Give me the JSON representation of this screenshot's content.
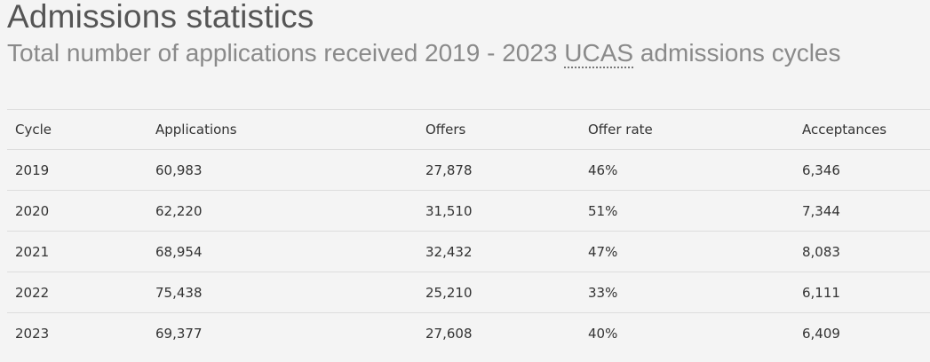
{
  "header": {
    "title": "Admissions statistics",
    "subtitle": {
      "before": "Total number of applications received 2019 - 2023",
      "abbr": "UCAS",
      "after": "admissions cycles"
    }
  },
  "table": {
    "columns": [
      "Cycle",
      "Applications",
      "Offers",
      "Offer rate",
      "Acceptances"
    ],
    "rows": [
      [
        "2019",
        "60,983",
        "27,878",
        "46%",
        "6,346"
      ],
      [
        "2020",
        "62,220",
        "31,510",
        "51%",
        "7,344"
      ],
      [
        "2021",
        "68,954",
        "32,432",
        "47%",
        "8,083"
      ],
      [
        "2022",
        "75,438",
        "25,210",
        "33%",
        "6,111"
      ],
      [
        "2023",
        "69,377",
        "27,608",
        "40%",
        "6,409"
      ]
    ]
  }
}
